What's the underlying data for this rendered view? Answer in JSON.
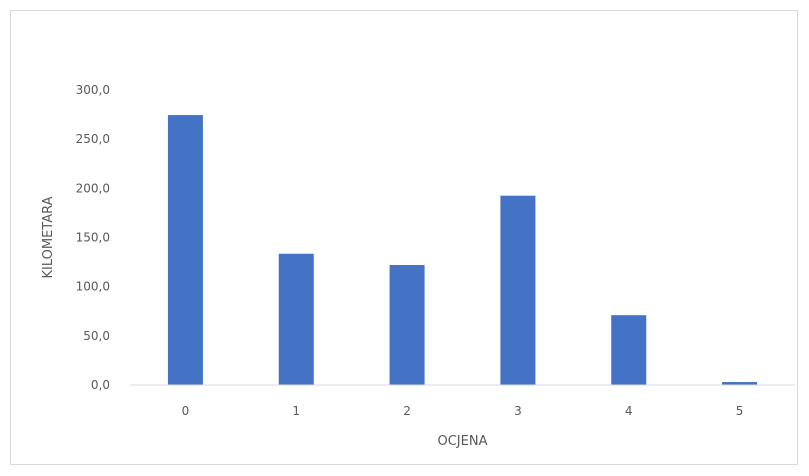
{
  "chart_data": {
    "type": "bar",
    "title": "",
    "xlabel": "OCJENA",
    "ylabel": "KILOMETARA",
    "categories": [
      "0",
      "1",
      "2",
      "3",
      "4",
      "5"
    ],
    "values": [
      274.5,
      133.5,
      122.0,
      192.5,
      71.0,
      3.0
    ],
    "ylim": [
      0,
      300
    ],
    "yticks": [
      "0,0",
      "50,0",
      "100,0",
      "150,0",
      "200,0",
      "250,0",
      "300,0"
    ],
    "ytick_values": [
      0,
      50,
      100,
      150,
      200,
      250,
      300
    ],
    "grid": false,
    "legend": "none",
    "bar_color": "#4472c4",
    "axis_color": "#d9d9d9",
    "text_color": "#595959"
  }
}
